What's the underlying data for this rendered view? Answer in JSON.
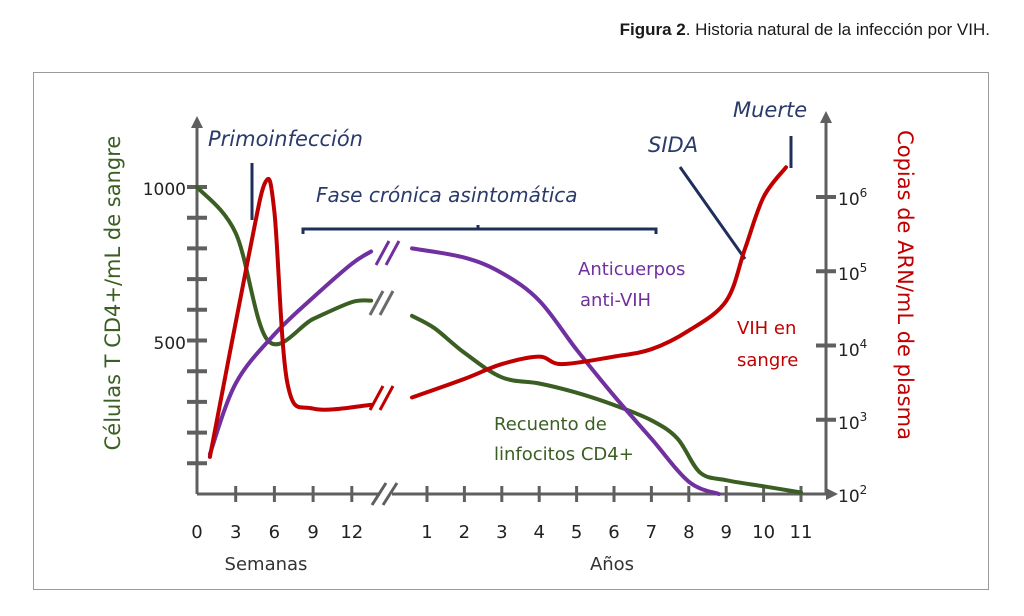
{
  "caption": {
    "bold": "Figura 2",
    "text": ". Historia natural de la infección por VIH."
  },
  "chart_data": {
    "type": "line",
    "title": "Historia natural de la infección por VIH",
    "xlabel_left": "Semanas",
    "xlabel_right": "Años",
    "x_ticks_weeks": [
      "0",
      "3",
      "6",
      "9",
      "12"
    ],
    "x_ticks_years": [
      "1",
      "2",
      "3",
      "4",
      "5",
      "6",
      "7",
      "8",
      "9",
      "10",
      "11"
    ],
    "ylabel_left": "Células T CD4+/mL de sangre",
    "ylabel_right": "Copias de ARN/mL de plasma",
    "y_left_ticks": [
      "1000",
      "500"
    ],
    "y_left_range": [
      0,
      1000
    ],
    "y_right_ticks": [
      "10²",
      "10³",
      "10⁴",
      "10⁵",
      "10⁶"
    ],
    "y_right_range_log10": [
      2,
      7
    ],
    "annotations": {
      "primo": "Primoinfección",
      "chronic": "Fase crónica asintomática",
      "sida": "SIDA",
      "death": "Muerte"
    },
    "series": [
      {
        "name": "Recuento de linfocitos CD4+",
        "label_line1": "Recuento de",
        "label_line2": "linfocitos CD4+",
        "color": "#3b5e23",
        "axis": "left",
        "points": [
          [
            "w0",
            1000
          ],
          [
            "w3",
            850
          ],
          [
            "w5.5",
            500
          ],
          [
            "w9",
            570
          ],
          [
            "w12",
            625
          ],
          [
            "w13.5",
            630
          ],
          [
            "y0.6",
            580
          ],
          [
            "y1.2",
            540
          ],
          [
            "y2",
            460
          ],
          [
            "y3",
            380
          ],
          [
            "y4",
            360
          ],
          [
            "y5",
            330
          ],
          [
            "y6",
            290
          ],
          [
            "y7",
            240
          ],
          [
            "y7.7",
            180
          ],
          [
            "y8.3",
            70
          ],
          [
            "y9",
            45
          ],
          [
            "y10",
            25
          ],
          [
            "y11",
            5
          ]
        ]
      },
      {
        "name": "Anticuerpos anti-VIH",
        "label_line1": "Anticuerpos",
        "label_line2": "anti-VIH",
        "color": "#7030a0",
        "axis": "left",
        "points": [
          [
            "w1",
            130
          ],
          [
            "w3",
            360
          ],
          [
            "w6",
            520
          ],
          [
            "w9",
            640
          ],
          [
            "w12",
            750
          ],
          [
            "w13.5",
            790
          ],
          [
            "y0.6",
            800
          ],
          [
            "y2",
            770
          ],
          [
            "y3",
            720
          ],
          [
            "y4",
            630
          ],
          [
            "y5",
            470
          ],
          [
            "y6",
            320
          ],
          [
            "y7",
            180
          ],
          [
            "y8",
            40
          ],
          [
            "y8.8",
            0
          ]
        ]
      },
      {
        "name": "VIH en sangre",
        "label_line1": "VIH en",
        "label_line2": "sangre",
        "color": "#c00000",
        "axis": "right",
        "points": [
          [
            "w1",
            2.5
          ],
          [
            "w4",
            5.2
          ],
          [
            "w5.3",
            6.2
          ],
          [
            "w6",
            5.8
          ],
          [
            "w7",
            3.5
          ],
          [
            "w9",
            3.15
          ],
          [
            "w13.5",
            3.2
          ],
          [
            "y0.6",
            3.3
          ],
          [
            "y2",
            3.55
          ],
          [
            "y3",
            3.75
          ],
          [
            "y4",
            3.85
          ],
          [
            "y4.6",
            3.75
          ],
          [
            "y6",
            3.85
          ],
          [
            "y7",
            3.95
          ],
          [
            "y8",
            4.2
          ],
          [
            "y9",
            4.6
          ],
          [
            "y9.5",
            5.3
          ],
          [
            "y10",
            6.0
          ],
          [
            "y10.6",
            6.4
          ]
        ]
      }
    ]
  }
}
